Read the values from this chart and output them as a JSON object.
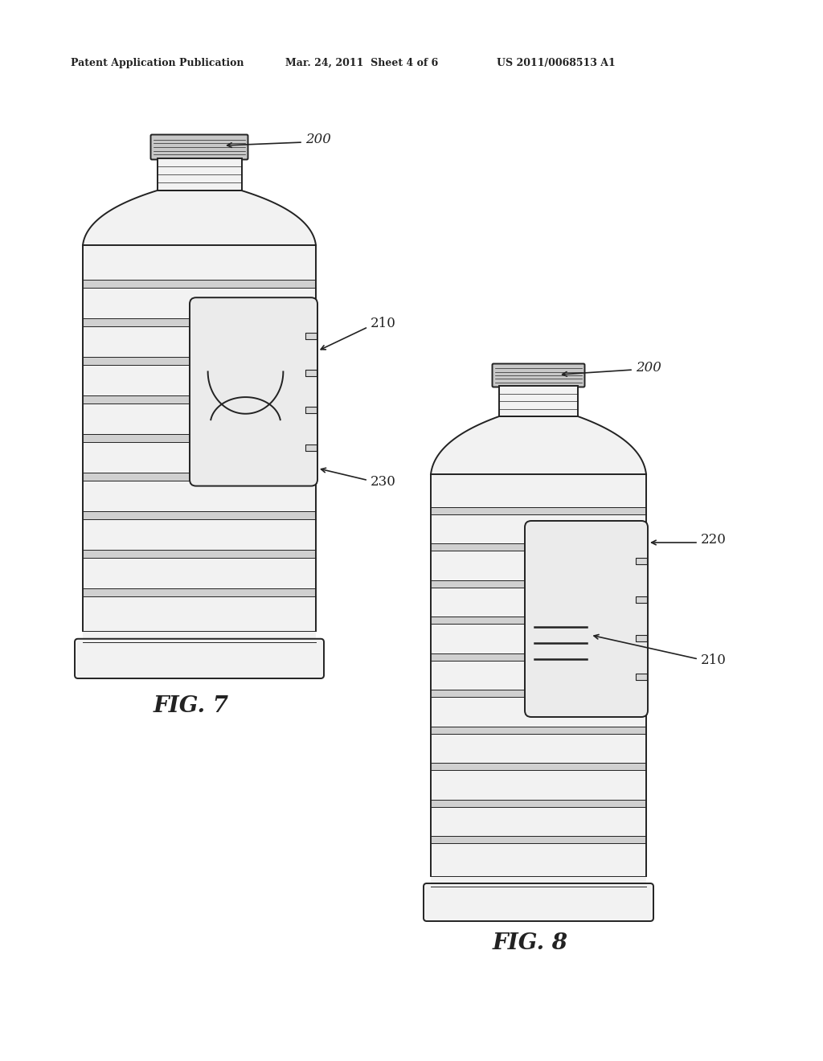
{
  "bg_color": "#ffffff",
  "header_left": "Patent Application Publication",
  "header_mid": "Mar. 24, 2011  Sheet 4 of 6",
  "header_right": "US 2011/0068513 A1",
  "fig7_label": "FIG. 7",
  "fig8_label": "FIG. 8",
  "label_200_fig7": "200",
  "label_210_fig7": "210",
  "label_230_fig7": "230",
  "label_200_fig8": "200",
  "label_220_fig8": "220",
  "label_210_fig8": "210",
  "dark": "#222222",
  "gray_fill": "#f2f2f2",
  "groove_fill": "#d0d0d0",
  "cap_fill": "#c8c8c8"
}
